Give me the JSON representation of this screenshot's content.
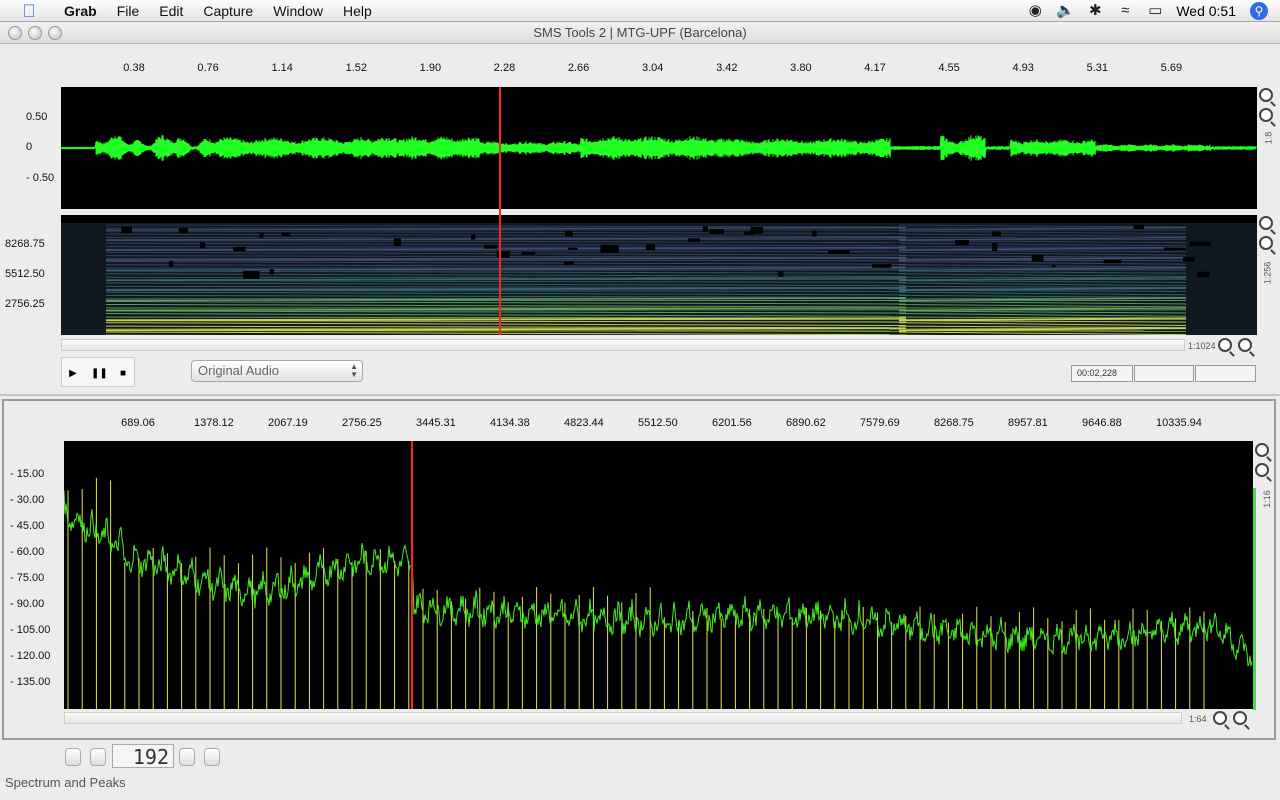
{
  "menubar": {
    "apple_icon": "apple-icon",
    "app_name": "Grab",
    "items": [
      "File",
      "Edit",
      "Capture",
      "Window",
      "Help"
    ],
    "status_icons": [
      "sync-icon",
      "volume-icon",
      "bluetooth-icon",
      "wifi-icon",
      "battery-icon"
    ],
    "clock": "Wed 0:51",
    "spotlight_icon": "spotlight-icon"
  },
  "window": {
    "title": "SMS Tools 2 | MTG-UPF (Barcelona)"
  },
  "waveform": {
    "time_ticks": [
      "0.38",
      "0.76",
      "1.14",
      "1.52",
      "1.90",
      "2.28",
      "2.66",
      "3.04",
      "3.42",
      "3.80",
      "4.17",
      "4.55",
      "4.93",
      "5.31",
      "5.69"
    ],
    "y_ticks": [
      "0.50",
      "0",
      "- 0.50"
    ],
    "zoom_label": "1:8",
    "wave_color": "#22ff22",
    "cursor_color": "#ff2020"
  },
  "spectrogram": {
    "y_ticks": [
      "8268.75",
      "5512.50",
      "2756.25"
    ],
    "zoom_label": "1:256",
    "h_zoom_label": "1:1024"
  },
  "transport": {
    "play_icon": "play-icon",
    "pause_icon": "pause-icon",
    "stop_icon": "stop-icon",
    "source_select": "Original Audio",
    "time_display": "00:02,228",
    "time_display_2": "",
    "time_display_3": ""
  },
  "spectrum": {
    "freq_ticks": [
      "689.06",
      "1378.12",
      "2067.19",
      "2756.25",
      "3445.31",
      "4134.38",
      "4823.44",
      "5512.50",
      "6201.56",
      "6890.62",
      "7579.69",
      "8268.75",
      "8957.81",
      "9646.88",
      "10335.94"
    ],
    "db_ticks": [
      "- 15.00",
      "- 30.00",
      "- 45.00",
      "- 60.00",
      "- 75.00",
      "- 90.00",
      "- 105.00",
      "- 120.00",
      "- 135.00"
    ],
    "v_zoom_label": "1:16",
    "h_zoom_label": "1:64",
    "spectrum_color": "#44ee22",
    "peak_color": "#e6e64a"
  },
  "frame_control": {
    "frame_number": "192"
  },
  "statusbar": {
    "text": "Spectrum and Peaks"
  }
}
